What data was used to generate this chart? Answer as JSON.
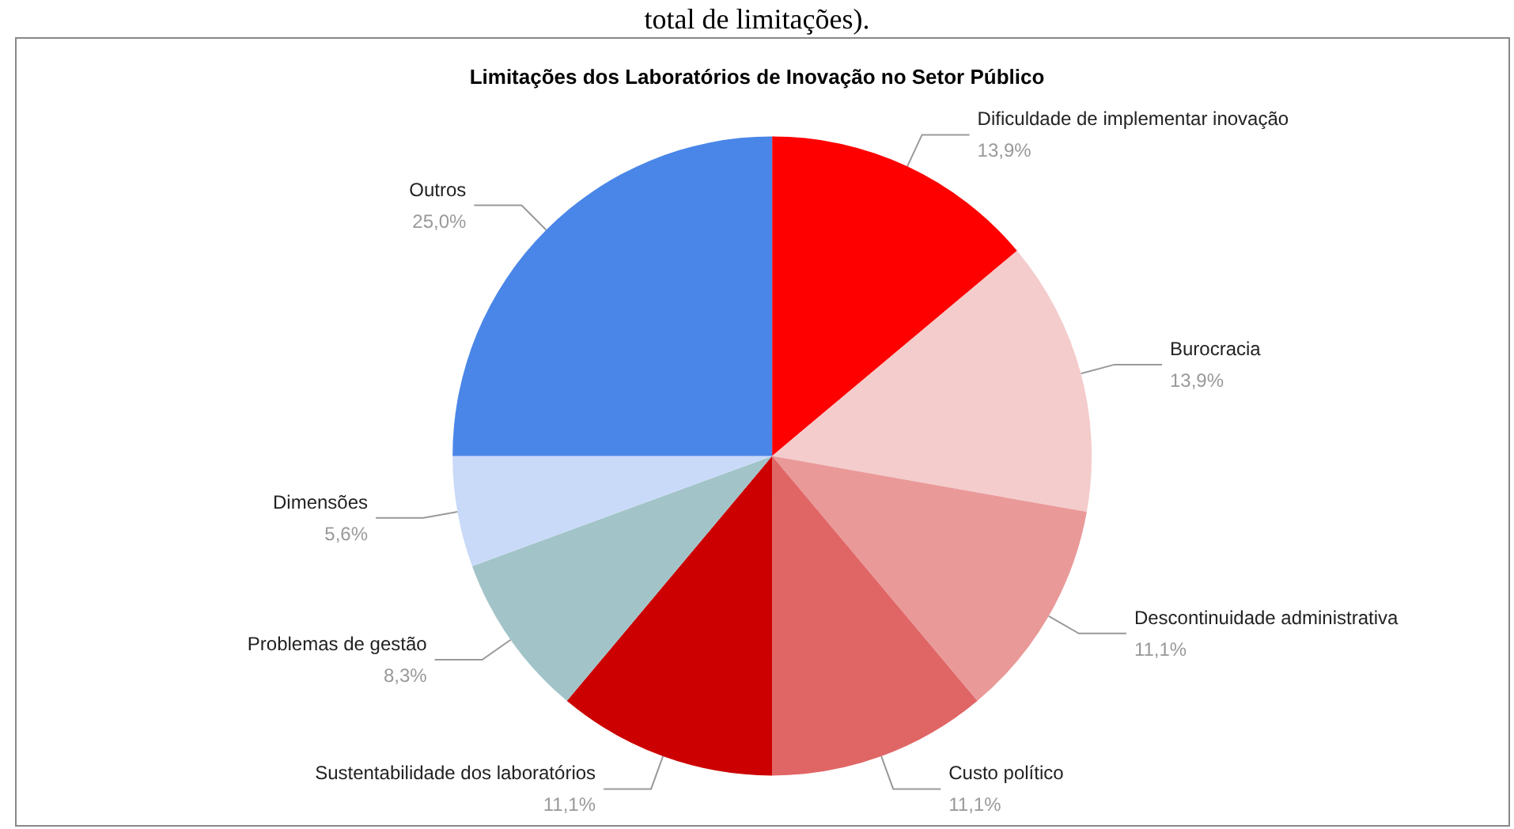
{
  "chart_data": {
    "type": "pie",
    "title": "Limitações dos Laboratórios de Inovação no Setor Público",
    "annotations": [
      "total de limitações)."
    ],
    "categories": [
      "Dificuldade de implementar inovação",
      "Burocracia",
      "Descontinuidade administrativa",
      "Custo político",
      "Sustentabilidade dos laboratórios",
      "Problemas de gestão",
      "Dimensões",
      "Outros"
    ],
    "values": [
      13.9,
      13.9,
      11.1,
      11.1,
      11.1,
      8.3,
      5.6,
      25.0
    ],
    "value_labels": [
      "13,9%",
      "13,9%",
      "11,1%",
      "11,1%",
      "11,1%",
      "8,3%",
      "5,6%",
      "25,0%"
    ],
    "colors": [
      "#ff0000",
      "#f4cccc",
      "#ea9999",
      "#e06666",
      "#cc0000",
      "#a2c4c9",
      "#c9daf8",
      "#4a86e8"
    ],
    "legend": false
  }
}
